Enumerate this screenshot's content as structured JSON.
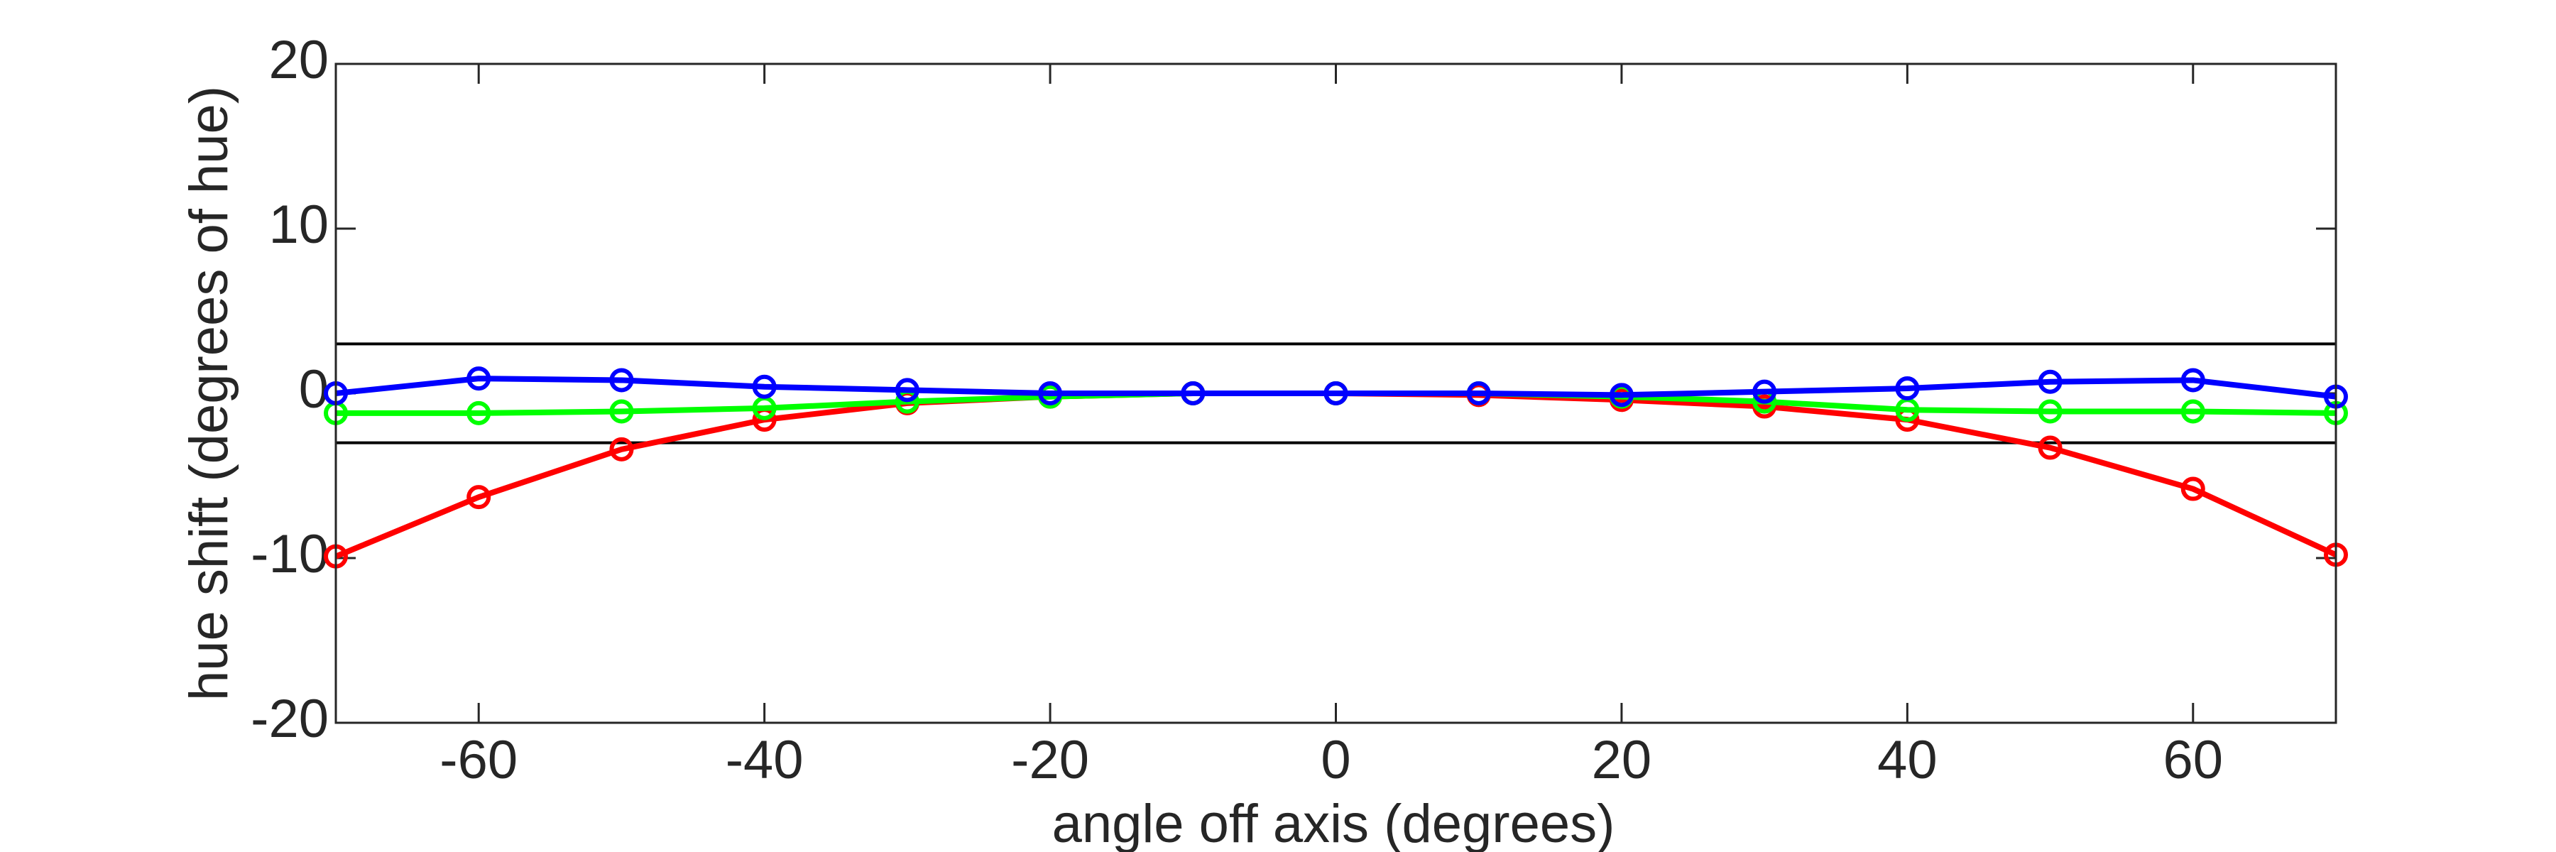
{
  "chart_data": {
    "type": "line",
    "xlabel": "angle off axis (degrees)",
    "ylabel": "hue shift (degrees of hue)",
    "x": [
      -70,
      -60,
      -50,
      -40,
      -30,
      -20,
      -10,
      0,
      10,
      20,
      30,
      40,
      50,
      60,
      70
    ],
    "series": [
      {
        "color": "#ff0000",
        "values": [
          -9.9,
          -6.3,
          -3.4,
          -1.6,
          -0.6,
          -0.2,
          0,
          0,
          -0.1,
          -0.4,
          -0.8,
          -1.6,
          -3.3,
          -5.8,
          -9.8
        ]
      },
      {
        "color": "#00ff00",
        "values": [
          -1.2,
          -1.2,
          -1.1,
          -0.9,
          -0.5,
          -0.2,
          0,
          0,
          0,
          -0.2,
          -0.5,
          -1.0,
          -1.1,
          -1.1,
          -1.2
        ]
      },
      {
        "color": "#0000ff",
        "values": [
          0,
          0.9,
          0.8,
          0.4,
          0.2,
          0,
          0,
          0,
          0,
          -0.1,
          0.1,
          0.3,
          0.7,
          0.8,
          -0.2
        ]
      }
    ],
    "hlines": [
      3,
      -3
    ],
    "xlim": [
      -70,
      70
    ],
    "ylim": [
      -20,
      20
    ],
    "xticks": [
      -60,
      -40,
      -20,
      0,
      20,
      40,
      60
    ],
    "yticks": [
      -20,
      -10,
      0,
      10,
      20
    ]
  }
}
